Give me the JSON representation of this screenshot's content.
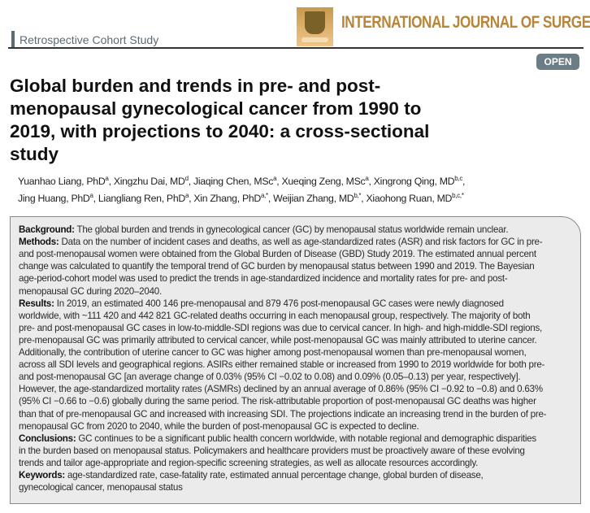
{
  "header": {
    "study_type": "Retrospective Cohort Study",
    "journal": "INTERNATIONAL JOURNAL OF SURGERY",
    "open_badge": "OPEN",
    "accent_color": "#b8863b"
  },
  "title_lines": [
    "Global burden and trends in pre- and post-",
    "menopausal gynecological cancer from 1990 to",
    "2019, with projections to 2040: a cross-sectional",
    "study"
  ],
  "authors": [
    {
      "name": "Yuanhao Liang, PhD",
      "aff": "a"
    },
    {
      "name": "Xingzhu Dai, MD",
      "aff": "d"
    },
    {
      "name": "Jiaqing Chen, MSc",
      "aff": "a"
    },
    {
      "name": "Xueqing Zeng, MSc",
      "aff": "a"
    },
    {
      "name": "Xingrong Qing, MD",
      "aff": "b,c"
    },
    {
      "name": "Jing Huang, PhD",
      "aff": "a"
    },
    {
      "name": "Liangliang Ren, PhD",
      "aff": "a"
    },
    {
      "name": "Xin Zhang, PhD",
      "aff": "a,*"
    },
    {
      "name": "Weijian Zhang, MD",
      "aff": "b,*"
    },
    {
      "name": "Xiaohong Ruan, MD",
      "aff": "b,c,*"
    }
  ],
  "abstract": [
    {
      "label": "Background:",
      "text": " The global burden and trends in gynecological cancer (GC) by menopausal status worldwide remain unclear."
    },
    {
      "label": "Methods:",
      "text": " Data on the number of incident cases and deaths, as well as age-standardized rates (ASR) and risk factors for GC in pre-"
    },
    {
      "text": "and post-menopausal women were obtained from the Global Burden of Disease (GBD) Study 2019. The estimated annual percent"
    },
    {
      "text": "change was calculated to quantify the temporal trend of GC burden by menopausal status between 1990 and 2019. The Bayesian"
    },
    {
      "text": "age-period-cohort model was used to predict the trends in age-standardized incidence and mortality rates for pre- and post-"
    },
    {
      "text": "menopausal GC during 2020–2040."
    },
    {
      "label": "Results:",
      "text": " In 2019, an estimated 400 146 pre-menopausal and 879 476 post-menopausal GC cases were newly diagnosed"
    },
    {
      "text": "worldwide, with ~111 420 and 442 821 GC-related deaths occurring in each menopausal group, respectively. The majority of both"
    },
    {
      "text": "pre- and post-menopausal GC cases in low-to-middle-SDI regions was due to cervical cancer. In high- and high-middle-SDI regions,"
    },
    {
      "text": "pre-menopausal GC was primarily attributed to cervical cancer, while post-menopausal GC was mainly attributed to uterine cancer."
    },
    {
      "text": "Additionally, the contribution of uterine cancer to GC was higher among post-menopausal women than pre-menopausal women,"
    },
    {
      "text": "across all SDI levels and geographical regions. ASIRs either remained stable or increased from 1990 to 2019 worldwide for both pre-"
    },
    {
      "text": "and post-menopausal GC [an average change of 0.03% (95% CI −0.02 to 0.08) and 0.09% (0.05–0.13) per year, respectively]."
    },
    {
      "text": "However, the age-standardized mortality rates (ASMRs) declined by an annual average of 0.86% (95% CI −0.92 to −0.8) and 0.63%"
    },
    {
      "text": "(95% CI −0.66 to −0.6) globally during the same period. The risk-attributable proportion of post-menopausal GC deaths was higher"
    },
    {
      "text": "than that of pre-menopausal GC and increased with increasing SDI. The projections indicate an increasing trend in the burden of pre-"
    },
    {
      "text": "menopausal GC from 2020 to 2040, while the burden of post-menopausal GC is expected to decline."
    },
    {
      "label": "Conclusions:",
      "text": " GC continues to be a significant public health concern worldwide, with notable regional and demographic disparities"
    },
    {
      "text": "in the burden based on menopausal status. Policymakers and healthcare providers must be proactively aware of these evolving"
    },
    {
      "text": "trends and tailor age-appropriate and region-specific screening strategies, as well as allocate resources accordingly."
    }
  ],
  "keywords": {
    "label": "Keywords:",
    "lines": [
      " age-standardized rate, case-fatality rate, estimated annual percentage change, global burden of disease,",
      "gynecological cancer, menopausal status"
    ]
  }
}
